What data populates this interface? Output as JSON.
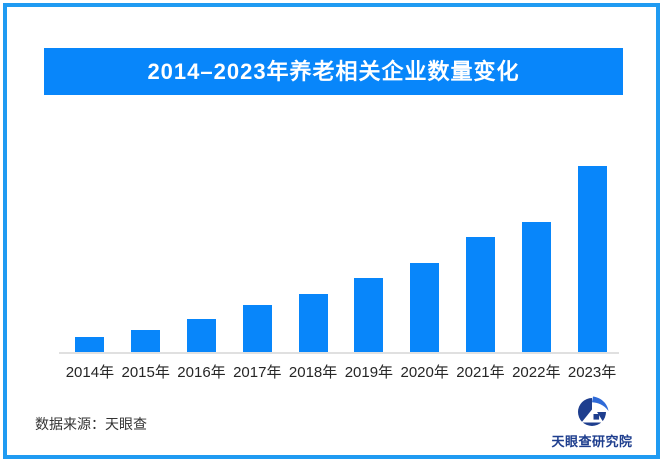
{
  "frame": {
    "border_color": "#209bf2"
  },
  "banner": {
    "title": "2014–2023年养老相关企业数量变化",
    "bg_color": "#0886fa",
    "text_color": "#ffffff"
  },
  "chart_data": {
    "type": "bar",
    "title": "2014–2023年养老相关企业数量变化",
    "categories": [
      "2014年",
      "2015年",
      "2016年",
      "2017年",
      "2018年",
      "2019年",
      "2020年",
      "2021年",
      "2022年",
      "2023年"
    ],
    "values": [
      8,
      12,
      18,
      25,
      31,
      40,
      48,
      62,
      70,
      100
    ],
    "value_unit": "relative height, max bar = 100 (no numeric axis or data labels shown in source)",
    "bar_color": "#0886fa",
    "xlabel": "",
    "ylabel": "",
    "yaxis_visible": false,
    "grid": false,
    "legend": false,
    "axis_line_color": "#e0e0e0",
    "tick_label_color": "#262626"
  },
  "footer": {
    "source_text": "数据来源：天眼查"
  },
  "logo": {
    "text": "天眼查研究院",
    "primary_color": "#1e3e8e",
    "accent_color": "#2e6ad8"
  }
}
